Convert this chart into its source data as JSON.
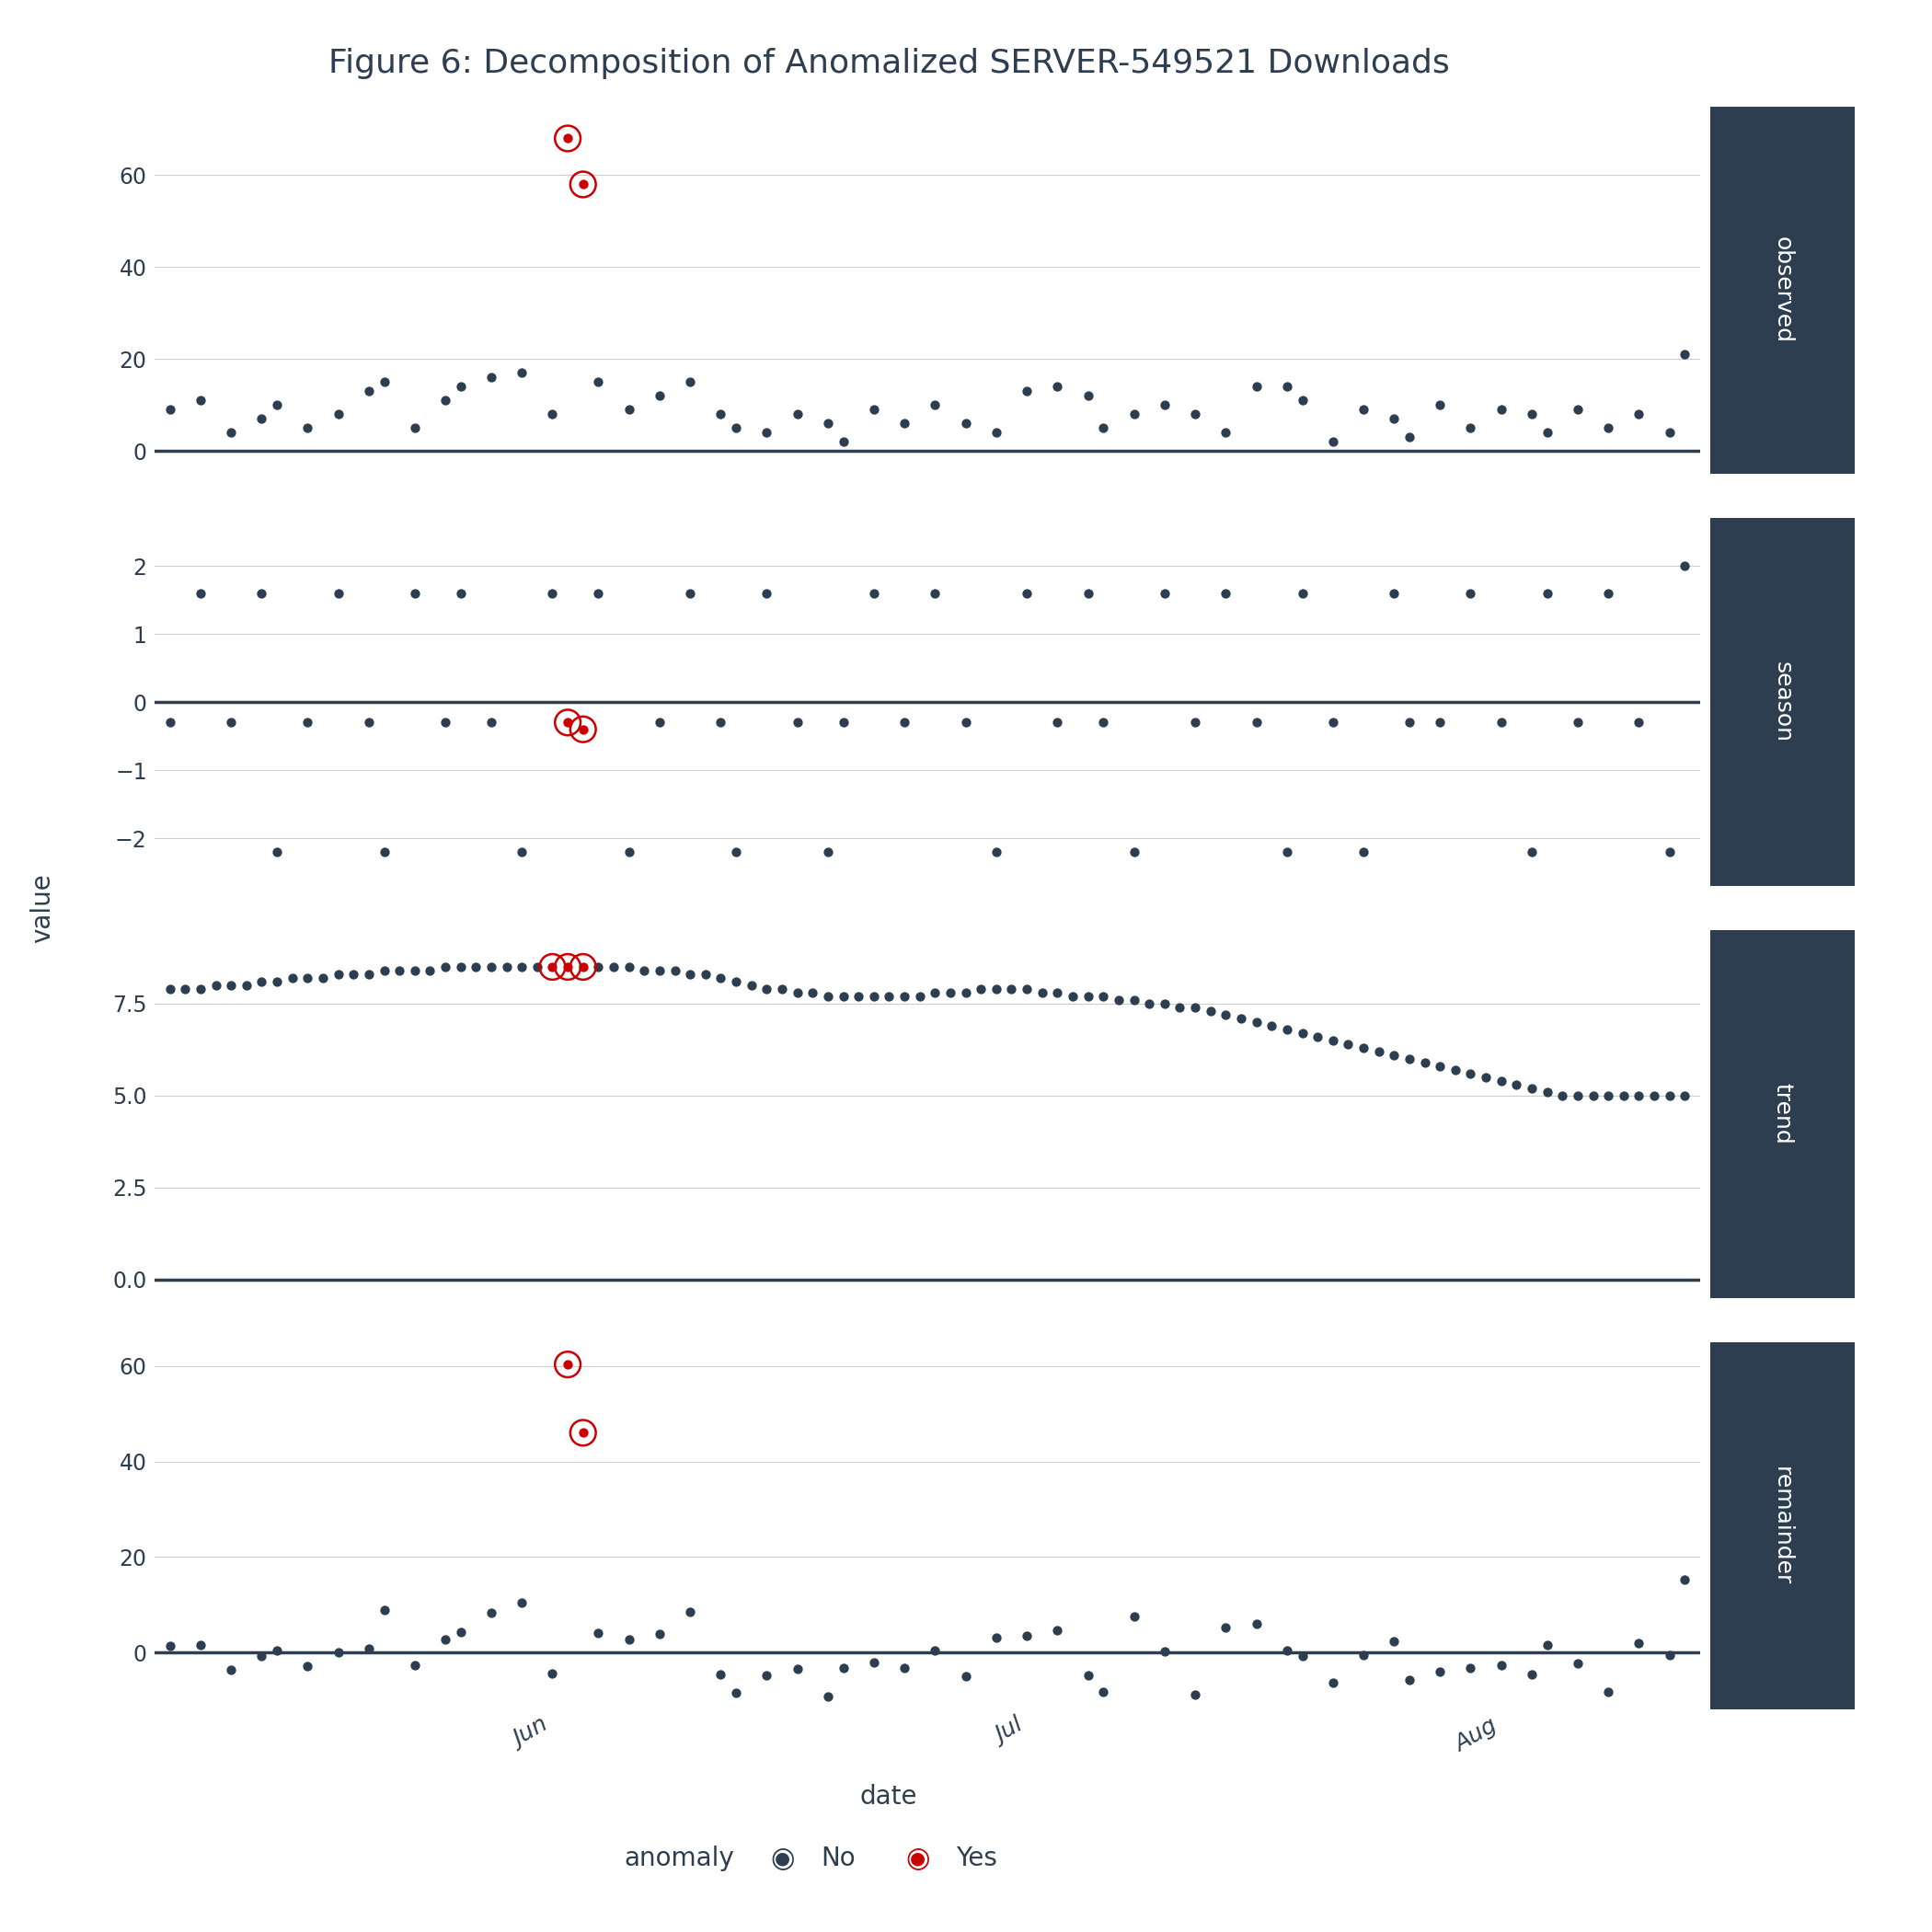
{
  "title": "Figure 6: Decomposition of Anomalized SERVER-549521 Downloads",
  "xlabel": "date",
  "ylabel": "value",
  "panel_labels": [
    "observed",
    "season",
    "trend",
    "remainder"
  ],
  "sidebar_color": "#2d3e50",
  "dot_color_normal": "#2d3e50",
  "dot_color_anomaly": "#cc0000",
  "line_color": "#2d3e50",
  "bg_color": "#ffffff",
  "grid_color": "#cccccc",
  "xtick_labels": [
    "Jun",
    "Jul",
    "Aug"
  ],
  "xtick_positions": [
    0.25,
    0.5,
    0.75
  ],
  "observed": {
    "x": [
      1,
      3,
      5,
      7,
      8,
      10,
      12,
      14,
      15,
      17,
      19,
      20,
      22,
      24,
      26,
      27,
      28,
      29,
      31,
      33,
      35,
      37,
      38,
      40,
      42,
      44,
      45,
      47,
      49,
      51,
      53,
      55,
      57,
      59,
      61,
      62,
      64,
      66,
      68,
      70,
      72,
      74,
      75,
      77,
      79,
      81,
      82,
      84,
      86,
      88,
      90,
      91,
      93,
      95,
      97,
      99,
      100
    ],
    "y": [
      9,
      11,
      4,
      7,
      10,
      5,
      8,
      13,
      15,
      5,
      11,
      14,
      16,
      17,
      8,
      68,
      58,
      15,
      9,
      12,
      15,
      8,
      5,
      4,
      8,
      6,
      2,
      9,
      6,
      10,
      6,
      4,
      13,
      14,
      12,
      5,
      8,
      10,
      8,
      4,
      14,
      14,
      11,
      2,
      9,
      7,
      3,
      10,
      5,
      9,
      8,
      4,
      9,
      5,
      8,
      4,
      21
    ],
    "anomaly": [
      false,
      false,
      false,
      false,
      false,
      false,
      false,
      false,
      false,
      false,
      false,
      false,
      false,
      false,
      false,
      true,
      true,
      false,
      false,
      false,
      false,
      false,
      false,
      false,
      false,
      false,
      false,
      false,
      false,
      false,
      false,
      false,
      false,
      false,
      false,
      false,
      false,
      false,
      false,
      false,
      false,
      false,
      false,
      false,
      false,
      false,
      false,
      false,
      false,
      false,
      false,
      false,
      false,
      false,
      false,
      false,
      false
    ]
  },
  "season": {
    "x": [
      1,
      3,
      5,
      7,
      8,
      10,
      12,
      14,
      15,
      17,
      19,
      20,
      22,
      24,
      26,
      27,
      28,
      29,
      31,
      33,
      35,
      37,
      38,
      40,
      42,
      44,
      45,
      47,
      49,
      51,
      53,
      55,
      57,
      59,
      61,
      62,
      64,
      66,
      68,
      70,
      72,
      74,
      75,
      77,
      79,
      81,
      82,
      84,
      86,
      88,
      90,
      91,
      93,
      95,
      97,
      99,
      100
    ],
    "y": [
      -0.3,
      1.6,
      -0.3,
      1.6,
      -2.2,
      -0.3,
      1.6,
      -0.3,
      -2.2,
      1.6,
      -0.3,
      1.6,
      -0.3,
      -2.2,
      1.6,
      -0.3,
      -0.4,
      1.6,
      -2.2,
      -0.3,
      1.6,
      -0.3,
      -2.2,
      1.6,
      -0.3,
      -2.2,
      -0.3,
      1.6,
      -0.3,
      1.6,
      -0.3,
      -2.2,
      1.6,
      -0.3,
      1.6,
      -0.3,
      -2.2,
      1.6,
      -0.3,
      1.6,
      -0.3,
      -2.2,
      1.6,
      -0.3,
      -2.2,
      1.6,
      -0.3,
      -0.3,
      1.6,
      -0.3,
      -2.2,
      1.6,
      -0.3,
      1.6,
      -0.3,
      -2.2,
      2.0
    ],
    "anomaly": [
      false,
      false,
      false,
      false,
      false,
      false,
      false,
      false,
      false,
      false,
      false,
      false,
      false,
      false,
      false,
      true,
      true,
      false,
      false,
      false,
      false,
      false,
      false,
      false,
      false,
      false,
      false,
      false,
      false,
      false,
      false,
      false,
      false,
      false,
      false,
      false,
      false,
      false,
      false,
      false,
      false,
      false,
      false,
      false,
      false,
      false,
      false,
      false,
      false,
      false,
      false,
      false,
      false,
      false,
      false,
      false,
      false
    ]
  },
  "trend": {
    "x": [
      1,
      2,
      3,
      4,
      5,
      6,
      7,
      8,
      9,
      10,
      11,
      12,
      13,
      14,
      15,
      16,
      17,
      18,
      19,
      20,
      21,
      22,
      23,
      24,
      25,
      26,
      27,
      28,
      29,
      30,
      31,
      32,
      33,
      34,
      35,
      36,
      37,
      38,
      39,
      40,
      41,
      42,
      43,
      44,
      45,
      46,
      47,
      48,
      49,
      50,
      51,
      52,
      53,
      54,
      55,
      56,
      57,
      58,
      59,
      60,
      61,
      62,
      63,
      64,
      65,
      66,
      67,
      68,
      69,
      70,
      71,
      72,
      73,
      74,
      75,
      76,
      77,
      78,
      79,
      80,
      81,
      82,
      83,
      84,
      85,
      86,
      87,
      88,
      89,
      90,
      91,
      92,
      93,
      94,
      95,
      96,
      97,
      98,
      99,
      100
    ],
    "y": [
      7.9,
      7.9,
      7.9,
      8.0,
      8.0,
      8.0,
      8.1,
      8.1,
      8.2,
      8.2,
      8.2,
      8.3,
      8.3,
      8.3,
      8.4,
      8.4,
      8.4,
      8.4,
      8.5,
      8.5,
      8.5,
      8.5,
      8.5,
      8.5,
      8.5,
      8.5,
      8.5,
      8.5,
      8.5,
      8.5,
      8.5,
      8.4,
      8.4,
      8.4,
      8.3,
      8.3,
      8.2,
      8.1,
      8.0,
      7.9,
      7.9,
      7.8,
      7.8,
      7.7,
      7.7,
      7.7,
      7.7,
      7.7,
      7.7,
      7.7,
      7.8,
      7.8,
      7.8,
      7.9,
      7.9,
      7.9,
      7.9,
      7.8,
      7.8,
      7.7,
      7.7,
      7.7,
      7.6,
      7.6,
      7.5,
      7.5,
      7.4,
      7.4,
      7.3,
      7.2,
      7.1,
      7.0,
      6.9,
      6.8,
      6.7,
      6.6,
      6.5,
      6.4,
      6.3,
      6.2,
      6.1,
      6.0,
      5.9,
      5.8,
      5.7,
      5.6,
      5.5,
      5.4,
      5.3,
      5.2,
      5.1,
      5.0,
      5.0,
      5.0,
      5.0,
      5.0,
      5.0,
      5.0,
      5.0,
      5.0
    ],
    "anomaly": [
      false,
      false,
      false,
      false,
      false,
      false,
      false,
      false,
      false,
      false,
      false,
      false,
      false,
      false,
      false,
      false,
      false,
      false,
      false,
      false,
      false,
      false,
      false,
      false,
      false,
      true,
      true,
      true,
      false,
      false,
      false,
      false,
      false,
      false,
      false,
      false,
      false,
      false,
      false,
      false,
      false,
      false,
      false,
      false,
      false,
      false,
      false,
      false,
      false,
      false,
      false,
      false,
      false,
      false,
      false,
      false,
      false,
      false,
      false,
      false,
      false,
      false,
      false,
      false,
      false,
      false,
      false,
      false,
      false,
      false,
      false,
      false,
      false,
      false,
      false,
      false,
      false,
      false,
      false,
      false,
      false,
      false,
      false,
      false,
      false,
      false,
      false,
      false,
      false,
      false,
      false,
      false,
      false,
      false,
      false,
      false,
      false,
      false,
      false,
      false
    ]
  },
  "remainder": {
    "x": [
      1,
      3,
      5,
      7,
      8,
      10,
      12,
      14,
      15,
      17,
      19,
      20,
      22,
      24,
      26,
      27,
      28,
      29,
      31,
      33,
      35,
      37,
      38,
      40,
      42,
      44,
      45,
      47,
      49,
      51,
      53,
      55,
      57,
      59,
      61,
      62,
      64,
      66,
      68,
      70,
      72,
      74,
      75,
      77,
      79,
      81,
      82,
      84,
      86,
      88,
      90,
      91,
      93,
      95,
      97,
      99,
      100
    ],
    "y": [
      1.4,
      1.5,
      -3.6,
      -0.7,
      0.4,
      -2.8,
      0.0,
      0.9,
      8.9,
      -2.7,
      2.8,
      4.2,
      8.3,
      10.5,
      -4.4,
      60.3,
      46.0,
      4.0,
      2.7,
      3.8,
      8.5,
      -4.5,
      -8.5,
      -4.7,
      -3.4,
      -9.2,
      -3.2,
      -2.0,
      -3.2,
      0.4,
      -5.0,
      3.1,
      3.6,
      4.6,
      -4.7,
      -8.3,
      7.5,
      0.3,
      -8.8,
      5.2,
      6.1,
      0.5,
      -0.8,
      -6.4,
      -0.5,
      2.3,
      -5.8,
      -4.1,
      -3.2,
      -2.6,
      -4.5,
      1.6,
      -2.3,
      -8.2,
      1.9,
      -0.6,
      15.3
    ],
    "anomaly": [
      false,
      false,
      false,
      false,
      false,
      false,
      false,
      false,
      false,
      false,
      false,
      false,
      false,
      false,
      false,
      true,
      true,
      false,
      false,
      false,
      false,
      false,
      false,
      false,
      false,
      false,
      false,
      false,
      false,
      false,
      false,
      false,
      false,
      false,
      false,
      false,
      false,
      false,
      false,
      false,
      false,
      false,
      false,
      false,
      false,
      false,
      false,
      false,
      false,
      false,
      false,
      false,
      false,
      false,
      false,
      false,
      false
    ]
  },
  "panel_ylims": {
    "observed": [
      -5,
      75
    ],
    "season": [
      -2.7,
      2.7
    ],
    "trend": [
      -0.5,
      9.5
    ],
    "remainder": [
      -12,
      65
    ]
  },
  "panel_yticks": {
    "observed": [
      0,
      20,
      40,
      60
    ],
    "season": [
      -2,
      -1,
      0,
      1,
      2
    ],
    "trend": [
      0.0,
      2.5,
      5.0,
      7.5
    ],
    "remainder": [
      0,
      20,
      40,
      60
    ]
  }
}
